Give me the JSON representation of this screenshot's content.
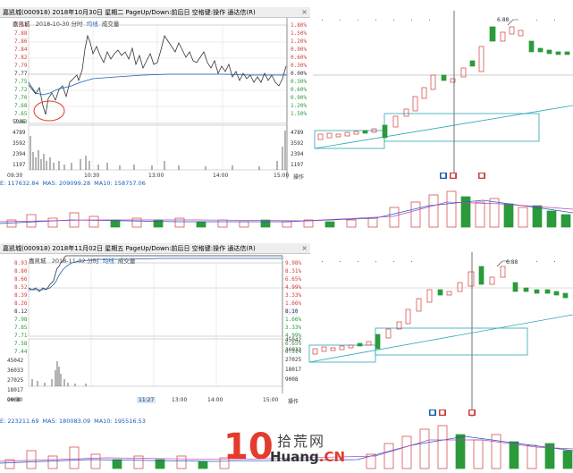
{
  "top": {
    "header": "嘉凯城(000918) 2018年10月30日 星期二 PageUp/Down:前后日 空格键:操作 通达信(R)",
    "subtitle_name": "嘉凯城",
    "subtitle_date": "2018-10-30 分时",
    "subtitle_avg": "均线",
    "subtitle_vol": "成交量",
    "prices": [
      "7.91",
      "7.88",
      "7.86",
      "7.84",
      "7.82",
      "7.79",
      "7.77",
      "7.75",
      "7.72",
      "7.70",
      "7.68",
      "7.65",
      "7.63"
    ],
    "pcts": [
      "1.80%",
      "1.50%",
      "1.20%",
      "0.90%",
      "0.60%",
      "0.30%",
      "0.00%",
      "0.30%",
      "0.60%",
      "0.90%",
      "1.20%",
      "1.50%",
      "1.80%"
    ],
    "vols": [
      "5986",
      "4789",
      "3592",
      "2394",
      "1197"
    ],
    "times": [
      "09:30",
      "10:30",
      "13:00",
      "14:00",
      "15:00"
    ],
    "op": "操作",
    "ma": {
      "e": "E: 117632.84",
      "ma5": "MA5: 209099.28",
      "ma10": "MA10: 158757.06"
    },
    "pt": {
      "a": "6.88"
    }
  },
  "bottom": {
    "header": "嘉凯城(000918) 2018年11月02日 星期五 PageUp/Down:前后日 空格键:操作 通达信(R)",
    "subtitle_name": "嘉凯城",
    "subtitle_date": "2018-11-02 分时",
    "subtitle_avg": "均线",
    "subtitle_vol": "成交量",
    "prices": [
      "8.93",
      "8.80",
      "8.66",
      "8.52",
      "8.39",
      "8.26",
      "8.12",
      "7.98",
      "7.85",
      "7.71",
      "7.58",
      "7.44"
    ],
    "pcts": [
      "9.98%",
      "8.31%",
      "6.65%",
      "4.99%",
      "3.33%",
      "1.66%",
      "0.00%",
      "1.66%",
      "3.33%",
      "4.99%",
      "6.65%",
      "8.31%"
    ],
    "vols": [
      "45042",
      "36033",
      "27025",
      "18017",
      "9008"
    ],
    "times": [
      "09:30",
      "11:27",
      "13:00",
      "14:00",
      "15:00"
    ],
    "op": "操作",
    "ma": {
      "e": "E: 223211.69",
      "ma5": "MA5: 180083.09",
      "ma10": "MA10: 195516.53"
    },
    "pt": {
      "a": "6.88",
      "cur": "8.10"
    }
  },
  "logo": {
    "ten": "10",
    "cn": "拾荒网",
    "en_a": "Huang",
    "en_b": ".CN"
  },
  "colors": {
    "up": "#d23c3c",
    "down": "#2a9a3a",
    "avg": "#1a5fb4",
    "box": "#2aa6b8"
  }
}
